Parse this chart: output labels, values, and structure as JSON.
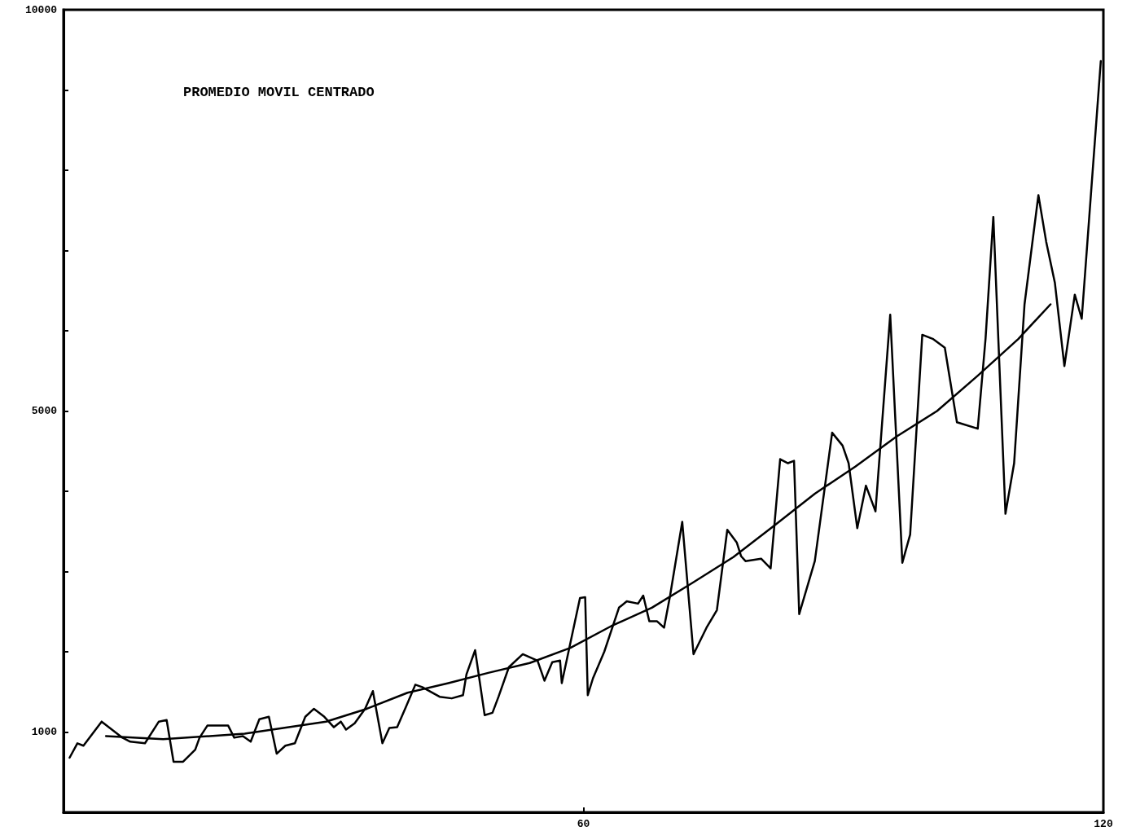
{
  "chart_data": {
    "type": "line",
    "title": "PROMEDIO MOVIL CENTRADO",
    "xlim": [
      0,
      120
    ],
    "xticks": [
      60,
      120
    ],
    "ylim": [
      0,
      10000
    ],
    "yticks": [
      {
        "value": 0,
        "label": null
      },
      1000,
      {
        "value": 2000,
        "label": null
      },
      {
        "value": 3000,
        "label": null
      },
      {
        "value": 4000,
        "label": null
      },
      5000,
      {
        "value": 6000,
        "label": null
      },
      {
        "value": 7000,
        "label": null
      },
      {
        "value": 8000,
        "label": null
      },
      {
        "value": 9000,
        "label": null
      },
      10000
    ],
    "marker": "none",
    "line_style": "solid",
    "series": [
      {
        "color": "#000000",
        "x": [
          0.7,
          1.6,
          2.3,
          4.4,
          6.8,
          7.7,
          9.4,
          11.0,
          11.9,
          12.7,
          13.8,
          15.2,
          15.7,
          16.6,
          19.0,
          19.7,
          20.7,
          21.6,
          22.6,
          23.7,
          24.6,
          25.6,
          26.7,
          27.9,
          28.9,
          30.1,
          31.2,
          32.0,
          32.6,
          33.6,
          34.8,
          35.7,
          36.8,
          37.6,
          38.5,
          39.5,
          40.6,
          41.4,
          43.4,
          44.8,
          46.1,
          46.5,
          47.5,
          48.6,
          49.5,
          50.2,
          51.4,
          53.0,
          54.7,
          55.5,
          56.4,
          57.3,
          57.5,
          59.6,
          60.2,
          60.5,
          61.1,
          62.4,
          64.1,
          65.0,
          66.3,
          66.9,
          67.6,
          68.5,
          69.3,
          70.0,
          71.4,
          72.7,
          74.2,
          75.4,
          76.6,
          77.7,
          78.2,
          78.7,
          80.5,
          81.6,
          82.7,
          83.6,
          84.3,
          84.9,
          86.7,
          88.7,
          89.9,
          90.6,
          91.6,
          92.6,
          93.7,
          95.4,
          96.8,
          97.7,
          99.1,
          100.3,
          101.7,
          103.1,
          105.5,
          106.4,
          107.3,
          108.7,
          109.7,
          110.9,
          112.5,
          113.4,
          114.4,
          115.5,
          116.7,
          117.5,
          119.7
        ],
        "values": [
          680,
          860,
          830,
          1130,
          930,
          880,
          860,
          1130,
          1150,
          630,
          630,
          780,
          930,
          1080,
          1080,
          930,
          950,
          880,
          1160,
          1190,
          730,
          830,
          860,
          1190,
          1290,
          1190,
          1060,
          1130,
          1030,
          1110,
          1290,
          1510,
          860,
          1050,
          1060,
          1310,
          1590,
          1560,
          1440,
          1420,
          1460,
          1720,
          2020,
          1210,
          1240,
          1440,
          1810,
          1970,
          1890,
          1640,
          1870,
          1890,
          1610,
          2670,
          2680,
          1460,
          1670,
          2000,
          2550,
          2630,
          2600,
          2700,
          2380,
          2380,
          2300,
          2700,
          3620,
          1970,
          2300,
          2520,
          3520,
          3360,
          3190,
          3130,
          3160,
          3040,
          4400,
          4350,
          4380,
          2470,
          3130,
          4730,
          4570,
          4350,
          3540,
          4070,
          3750,
          6200,
          3110,
          3460,
          5950,
          5900,
          5790,
          4860,
          4780,
          5900,
          7420,
          3720,
          4350,
          6330,
          7690,
          7110,
          6600,
          5560,
          6450,
          6150,
          9360
        ]
      },
      {
        "color": "#000000",
        "x": [
          4.9,
          11.5,
          20.9,
          30.3,
          35.0,
          39.7,
          44.4,
          49.1,
          53.8,
          58.5,
          63.2,
          67.9,
          72.6,
          77.3,
          82.0,
          86.7,
          91.4,
          96.1,
          100.8,
          105.5,
          110.2,
          113.9
        ],
        "values": [
          950,
          910,
          980,
          1130,
          1290,
          1490,
          1610,
          1740,
          1860,
          2050,
          2320,
          2550,
          2860,
          3180,
          3570,
          3970,
          4310,
          4680,
          5000,
          5440,
          5900,
          6330
        ]
      }
    ]
  }
}
